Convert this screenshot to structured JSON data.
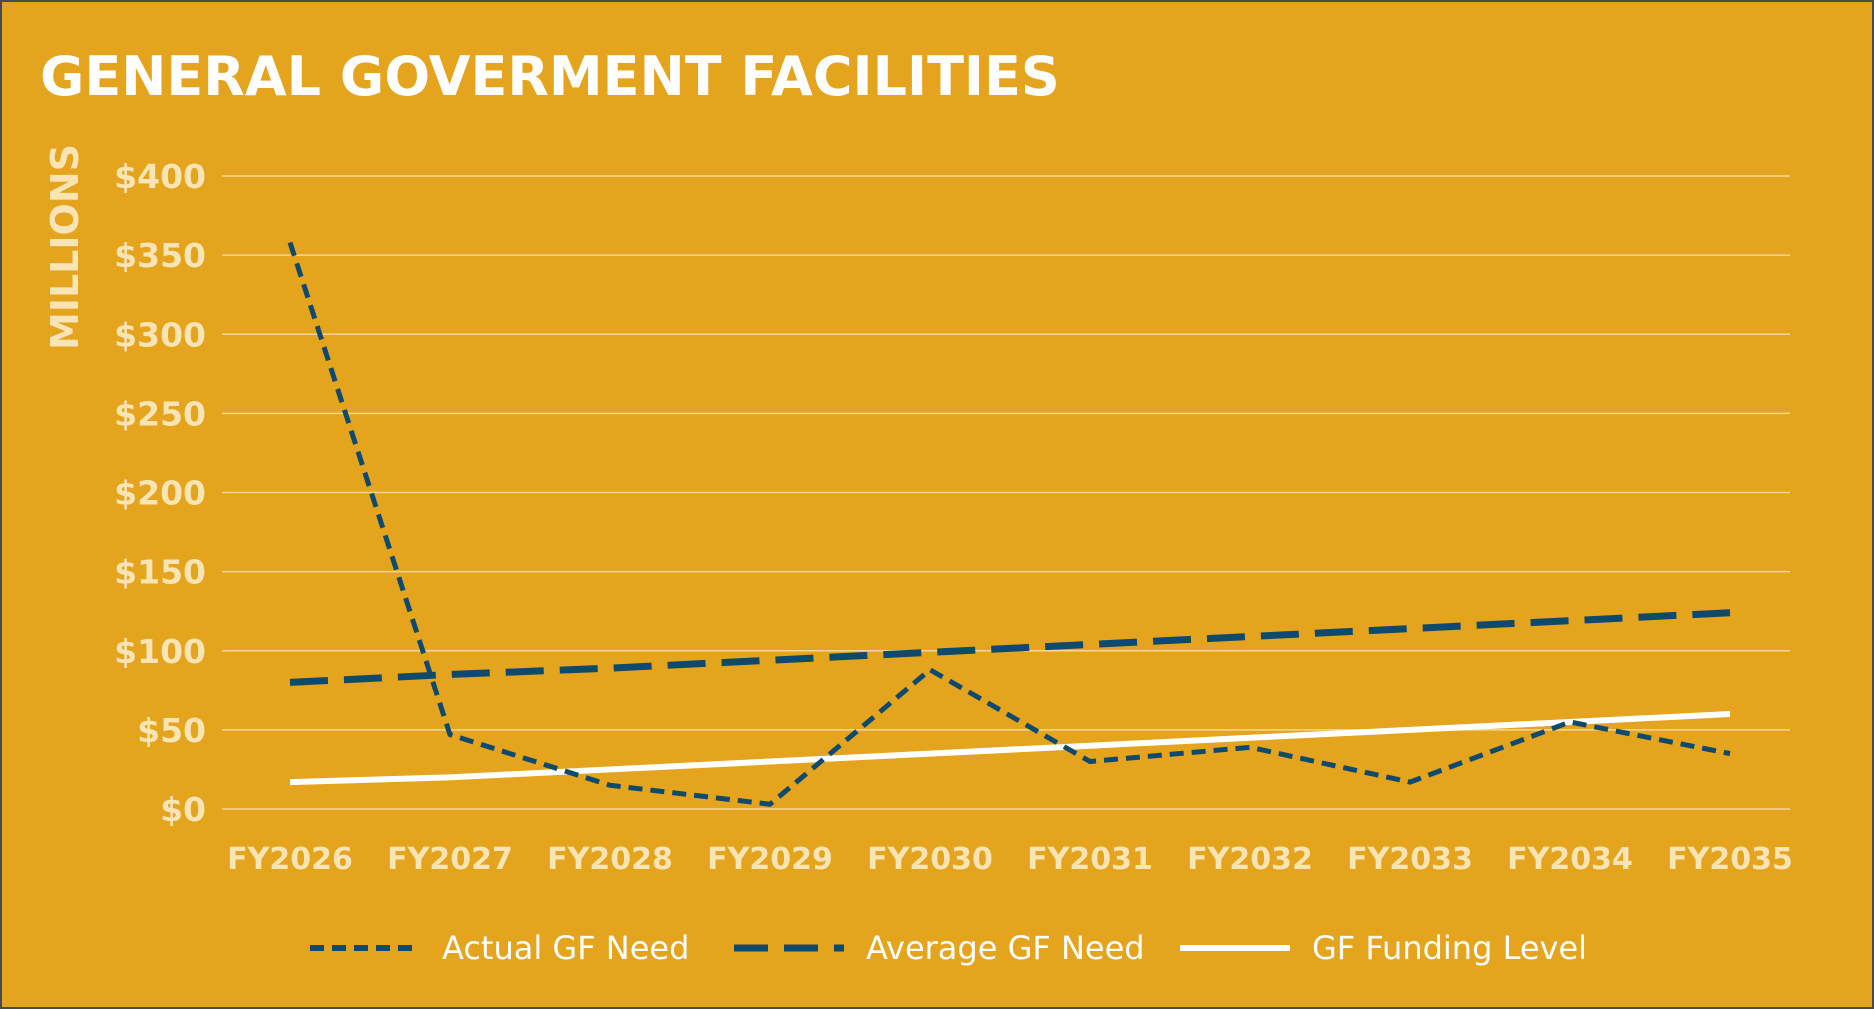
{
  "chart_data": {
    "type": "line",
    "title": "GENERAL GOVERMENT FACILITIES",
    "xlabel": "",
    "ylabel": "MILLIONS",
    "categories": [
      "FY2026",
      "FY2027",
      "FY2028",
      "FY2029",
      "FY2030",
      "FY2031",
      "FY2032",
      "FY2033",
      "FY2034",
      "FY2035"
    ],
    "ylim": [
      0,
      400
    ],
    "yticks": [
      0,
      50,
      100,
      150,
      200,
      250,
      300,
      350,
      400
    ],
    "ytick_labels": [
      "$0",
      "$50",
      "$100",
      "$150",
      "$200",
      "$250",
      "$300",
      "$350",
      "$400"
    ],
    "grid": true,
    "legend_position": "bottom",
    "series": [
      {
        "name": "Actual GF Need",
        "style": "short-dash",
        "color": "#0E4A6E",
        "values": [
          358,
          47,
          15,
          3,
          88,
          30,
          39,
          17,
          55,
          35
        ]
      },
      {
        "name": "Average GF Need",
        "style": "long-dash",
        "color": "#0E4A6E",
        "values": [
          80,
          85,
          89,
          94,
          99,
          104,
          109,
          114,
          119,
          124
        ]
      },
      {
        "name": "GF Funding Level",
        "style": "solid",
        "color": "#FFFFFF",
        "values": [
          17,
          20,
          25,
          30,
          35,
          40,
          45,
          50,
          55,
          60
        ]
      }
    ]
  },
  "colors": {
    "background": "#E5A41D",
    "title": "#FFFFFF",
    "axis_text": "#F8E4B4",
    "gridline": "#F3D79A",
    "series_dark": "#0E4A6E",
    "series_light": "#FFFFFF"
  }
}
